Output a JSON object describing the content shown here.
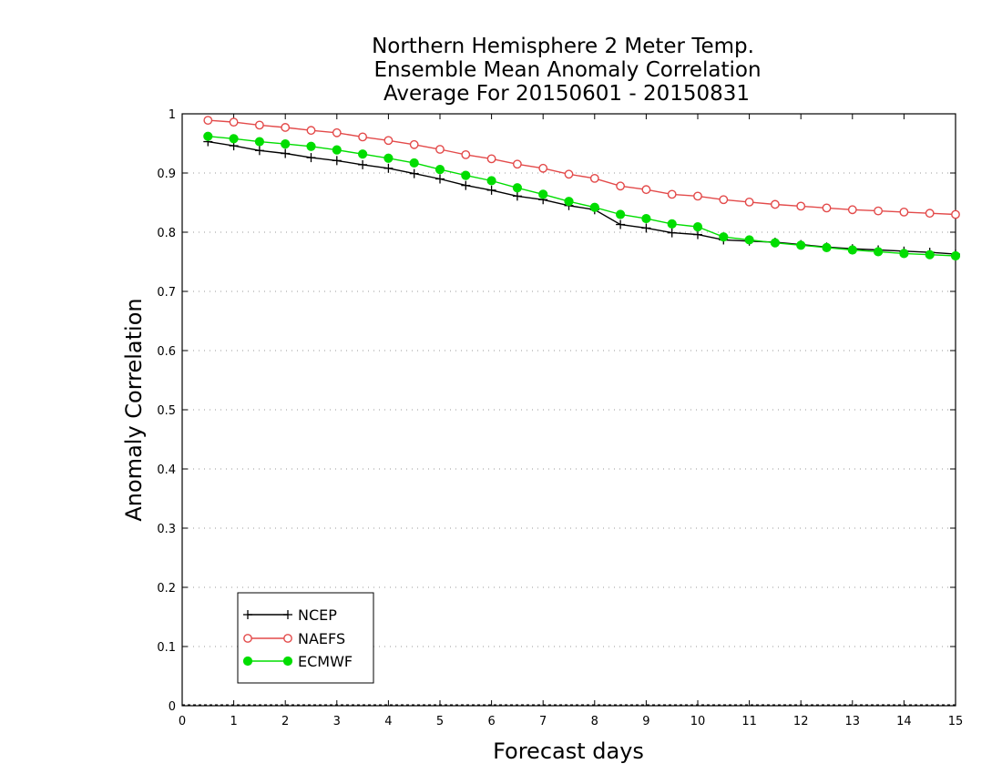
{
  "chart_data": {
    "type": "line",
    "title": [
      "Northern Hemisphere 2 Meter Temp.",
      "Ensemble Mean Anomaly Correlation",
      "Average For 20150601 - 20150831"
    ],
    "xlabel": "Forecast days",
    "ylabel": "Anomaly Correlation",
    "xlim": [
      0,
      15
    ],
    "ylim": [
      0,
      1
    ],
    "xticks": [
      0,
      1,
      2,
      3,
      4,
      5,
      6,
      7,
      8,
      9,
      10,
      11,
      12,
      13,
      14,
      15
    ],
    "yticks": [
      0,
      0.1,
      0.2,
      0.3,
      0.4,
      0.5,
      0.6,
      0.7,
      0.8,
      0.9,
      1
    ],
    "ytick_labels": [
      "0",
      "0.1",
      "0.2",
      "0.3",
      "0.4",
      "0.5",
      "0.6",
      "0.7",
      "0.8",
      "0.9",
      "1"
    ],
    "grid": "horizontal dotted",
    "legend_position": "bottom-left",
    "x": [
      0.5,
      1,
      1.5,
      2,
      2.5,
      3,
      3.5,
      4,
      4.5,
      5,
      5.5,
      6,
      6.5,
      7,
      7.5,
      8,
      8.5,
      9,
      9.5,
      10,
      10.5,
      11,
      11.5,
      12,
      12.5,
      13,
      13.5,
      14,
      14.5,
      15
    ],
    "series": [
      {
        "name": "NCEP",
        "color": "#000000",
        "marker": "plus",
        "values": [
          0.953,
          0.946,
          0.938,
          0.933,
          0.926,
          0.921,
          0.914,
          0.908,
          0.899,
          0.89,
          0.879,
          0.871,
          0.861,
          0.855,
          0.845,
          0.838,
          0.813,
          0.807,
          0.799,
          0.796,
          0.787,
          0.785,
          0.783,
          0.779,
          0.775,
          0.772,
          0.77,
          0.768,
          0.766,
          0.763
        ]
      },
      {
        "name": "NAEFS",
        "color": "#e34a4a",
        "marker": "open-circle",
        "values": [
          0.989,
          0.986,
          0.981,
          0.977,
          0.972,
          0.968,
          0.961,
          0.955,
          0.948,
          0.94,
          0.931,
          0.924,
          0.915,
          0.908,
          0.898,
          0.891,
          0.878,
          0.872,
          0.864,
          0.861,
          0.855,
          0.851,
          0.847,
          0.844,
          0.841,
          0.838,
          0.836,
          0.834,
          0.832,
          0.83
        ]
      },
      {
        "name": "ECMWF",
        "color": "#00dd00",
        "marker": "filled-circle",
        "values": [
          0.962,
          0.958,
          0.953,
          0.949,
          0.945,
          0.939,
          0.932,
          0.925,
          0.917,
          0.906,
          0.896,
          0.887,
          0.875,
          0.864,
          0.852,
          0.842,
          0.83,
          0.823,
          0.814,
          0.809,
          0.792,
          0.787,
          0.782,
          0.778,
          0.774,
          0.77,
          0.767,
          0.764,
          0.762,
          0.76
        ]
      }
    ]
  }
}
